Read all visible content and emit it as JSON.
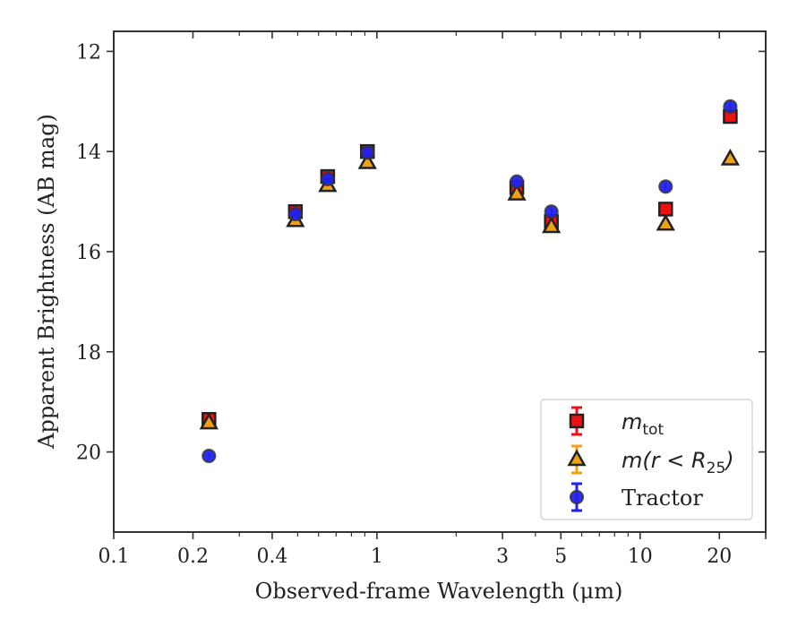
{
  "chart_data": {
    "type": "scatter",
    "xlabel": "Observed-frame Wavelength (μm)",
    "ylabel": "Apparent Brightness (AB mag)",
    "xscale": "log",
    "xlim": [
      0.1,
      30
    ],
    "ylim": [
      21.6,
      11.6
    ],
    "y_inverted": true,
    "grid": false,
    "legend_position": "lower-right",
    "x_ticks": [
      0.1,
      0.2,
      0.4,
      1,
      3,
      5,
      10,
      20
    ],
    "x_tick_labels": [
      "0.1",
      "0.2",
      "0.4",
      "1",
      "3",
      "5",
      "10",
      "20"
    ],
    "y_ticks": [
      12,
      14,
      16,
      18,
      20
    ],
    "y_tick_labels": [
      "12",
      "14",
      "16",
      "18",
      "20"
    ],
    "series": [
      {
        "name": "m_tot",
        "legend_label_main": "m",
        "legend_label_sub": "tot",
        "marker": "square",
        "color": "#ee1111",
        "edge_color": "#222222",
        "x": [
          0.23,
          0.49,
          0.65,
          0.92,
          3.4,
          4.6,
          12.5,
          22
        ],
        "y": [
          19.35,
          15.2,
          14.5,
          14.0,
          14.72,
          15.4,
          15.15,
          13.3
        ]
      },
      {
        "name": "m(r < R25)",
        "legend_label_main": "m(r < R",
        "legend_label_sub": "25",
        "legend_label_tail": ")",
        "marker": "triangle",
        "color": "#f0a015",
        "edge_color": "#222222",
        "x": [
          0.23,
          0.49,
          0.65,
          0.92,
          3.4,
          4.6,
          12.5,
          22
        ],
        "y": [
          19.42,
          15.38,
          14.68,
          14.22,
          14.85,
          15.5,
          15.45,
          14.15
        ]
      },
      {
        "name": "Tractor",
        "legend_label_main": "Tractor",
        "marker": "circle",
        "color": "#2222ee",
        "edge_color": "#333333",
        "x": [
          0.23,
          0.49,
          0.65,
          0.92,
          3.4,
          4.6,
          12.5,
          22
        ],
        "y": [
          20.08,
          15.25,
          14.55,
          14.02,
          14.6,
          15.2,
          14.7,
          13.1
        ]
      }
    ]
  }
}
